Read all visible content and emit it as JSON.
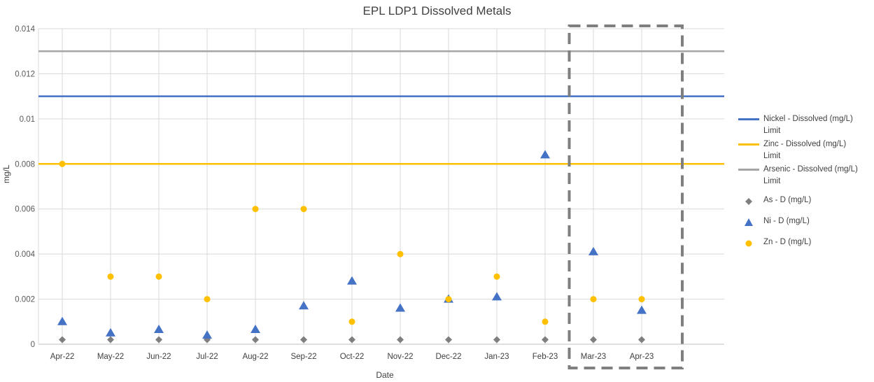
{
  "chart_data": {
    "type": "scatter",
    "title": "EPL LDP1 Dissolved Metals",
    "xlabel": "Date",
    "ylabel": "mg/L",
    "ylim": [
      0,
      0.014
    ],
    "y_ticks": [
      "0",
      "0.002",
      "0.004",
      "0.006",
      "0.008",
      "0.01",
      "0.012",
      "0.014"
    ],
    "categories": [
      "Apr-22",
      "May-22",
      "Jun-22",
      "Jul-22",
      "Aug-22",
      "Sep-22",
      "Oct-22",
      "Nov-22",
      "Dec-22",
      "Jan-23",
      "Feb-23",
      "Mar-23",
      "Apr-23"
    ],
    "grid": true,
    "legend_position": "right",
    "highlight_box": {
      "from": "Feb-23",
      "to": "Apr-23",
      "style": "dashed"
    },
    "limits": [
      {
        "name": "Nickel - Dissolved (mg/L) Limit",
        "value": 0.011,
        "color": "#4472c4"
      },
      {
        "name": "Zinc - Dissolved (mg/L) Limit",
        "value": 0.008,
        "color": "#ffc000"
      },
      {
        "name": "Arsenic - Dissolved (mg/L) Limit",
        "value": 0.013,
        "color": "#a5a5a5"
      }
    ],
    "series": [
      {
        "name": "As - D (mg/L)",
        "marker": "diamond",
        "color": "#7f7f7f",
        "points": [
          [
            "Apr-22",
            0.0002
          ],
          [
            "May-22",
            0.0002
          ],
          [
            "Jun-22",
            0.0002
          ],
          [
            "Jul-22",
            0.0002
          ],
          [
            "Aug-22",
            0.0002
          ],
          [
            "Sep-22",
            0.0002
          ],
          [
            "Oct-22",
            0.0002
          ],
          [
            "Nov-22",
            0.0002
          ],
          [
            "Dec-22",
            0.0002
          ],
          [
            "Jan-23",
            0.0002
          ],
          [
            "Feb-23",
            0.0002
          ],
          [
            "Mar-23",
            0.0002
          ],
          [
            "Apr-23",
            0.0002
          ]
        ]
      },
      {
        "name": "Ni - D (mg/L)",
        "marker": "triangle",
        "color": "#4472c4",
        "points": [
          [
            "Apr-22",
            0.001
          ],
          [
            "May-22",
            0.0005
          ],
          [
            "Jun-22",
            0.00065
          ],
          [
            "Jul-22",
            0.0004
          ],
          [
            "Aug-22",
            0.00065
          ],
          [
            "Sep-22",
            0.0017
          ],
          [
            "Oct-22",
            0.0028
          ],
          [
            "Nov-22",
            0.0016
          ],
          [
            "Dec-22",
            0.002
          ],
          [
            "Jan-23",
            0.0021
          ],
          [
            "Feb-23",
            0.0084
          ],
          [
            "Mar-23",
            0.0041
          ],
          [
            "Apr-23",
            0.0015
          ]
        ]
      },
      {
        "name": "Zn - D (mg/L)",
        "marker": "circle",
        "color": "#ffc000",
        "points": [
          [
            "Apr-22",
            0.008
          ],
          [
            "May-22",
            0.003
          ],
          [
            "Jun-22",
            0.003
          ],
          [
            "Jul-22",
            0.002
          ],
          [
            "Aug-22",
            0.006
          ],
          [
            "Sep-22",
            0.006
          ],
          [
            "Oct-22",
            0.001
          ],
          [
            "Nov-22",
            0.004
          ],
          [
            "Dec-22",
            0.002
          ],
          [
            "Jan-23",
            0.003
          ],
          [
            "Feb-23",
            0.001
          ],
          [
            "Mar-23",
            0.002
          ],
          [
            "Apr-23",
            0.002
          ]
        ]
      }
    ]
  }
}
